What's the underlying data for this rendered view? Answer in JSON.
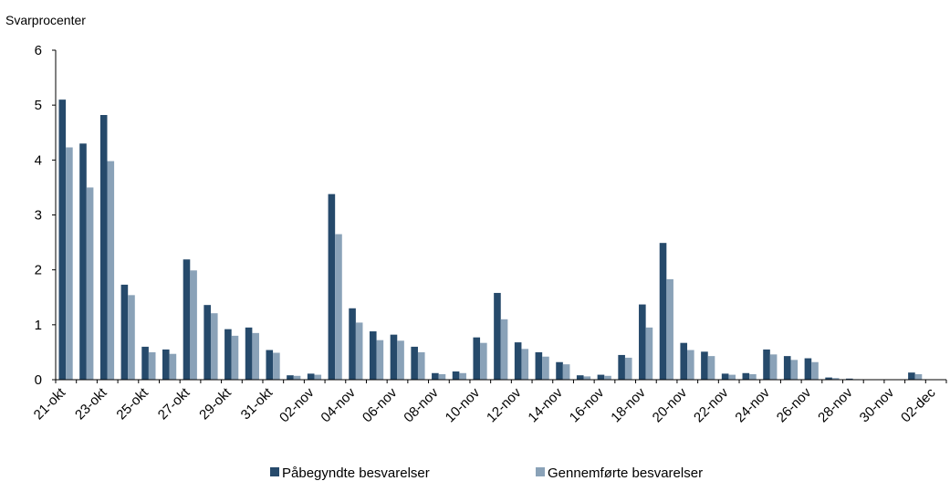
{
  "chart_data": {
    "type": "bar",
    "ylabel": "Svarprocenter",
    "xlabel": "",
    "ylim": [
      0,
      6
    ],
    "yticks": [
      0,
      1,
      2,
      3,
      4,
      5,
      6
    ],
    "grid": false,
    "legend_position": "bottom",
    "categories": [
      "21-okt",
      "22-okt",
      "23-okt",
      "24-okt",
      "25-okt",
      "26-okt",
      "27-okt",
      "28-okt",
      "29-okt",
      "30-okt",
      "31-okt",
      "01-nov",
      "02-nov",
      "03-nov",
      "04-nov",
      "05-nov",
      "06-nov",
      "07-nov",
      "08-nov",
      "09-nov",
      "10-nov",
      "11-nov",
      "12-nov",
      "13-nov",
      "14-nov",
      "15-nov",
      "16-nov",
      "17-nov",
      "18-nov",
      "19-nov",
      "20-nov",
      "21-nov",
      "22-nov",
      "23-nov",
      "24-nov",
      "25-nov",
      "26-nov",
      "27-nov",
      "28-nov",
      "29-nov",
      "30-nov",
      "01-dec",
      "02-dec"
    ],
    "xtick_labels": [
      "21-okt",
      "23-okt",
      "25-okt",
      "27-okt",
      "29-okt",
      "31-okt",
      "02-nov",
      "04-nov",
      "06-nov",
      "08-nov",
      "10-nov",
      "12-nov",
      "14-nov",
      "16-nov",
      "18-nov",
      "20-nov",
      "22-nov",
      "24-nov",
      "26-nov",
      "28-nov",
      "30-nov",
      "02-dec"
    ],
    "series": [
      {
        "name": "Påbegyndte besvarelser",
        "color": "#264a6b",
        "values": [
          5.1,
          4.3,
          4.82,
          1.73,
          0.6,
          0.55,
          2.19,
          1.36,
          0.92,
          0.95,
          0.54,
          0.08,
          0.11,
          3.38,
          1.3,
          0.88,
          0.82,
          0.6,
          0.12,
          0.15,
          0.77,
          1.58,
          0.68,
          0.5,
          0.32,
          0.08,
          0.09,
          0.45,
          1.37,
          2.49,
          0.67,
          0.51,
          0.11,
          0.12,
          0.55,
          0.43,
          0.39,
          0.04,
          0.02,
          0.0,
          0.0,
          0.13,
          0.0
        ]
      },
      {
        "name": "Gennemførte besvarelser",
        "color": "#8aa2b8",
        "values": [
          4.23,
          3.5,
          3.98,
          1.54,
          0.5,
          0.47,
          1.99,
          1.21,
          0.8,
          0.85,
          0.49,
          0.07,
          0.09,
          2.65,
          1.04,
          0.72,
          0.71,
          0.5,
          0.1,
          0.12,
          0.67,
          1.1,
          0.56,
          0.42,
          0.28,
          0.06,
          0.07,
          0.4,
          0.95,
          1.83,
          0.54,
          0.43,
          0.09,
          0.1,
          0.46,
          0.36,
          0.32,
          0.03,
          0.01,
          0.0,
          0.0,
          0.1,
          0.0
        ]
      }
    ]
  }
}
